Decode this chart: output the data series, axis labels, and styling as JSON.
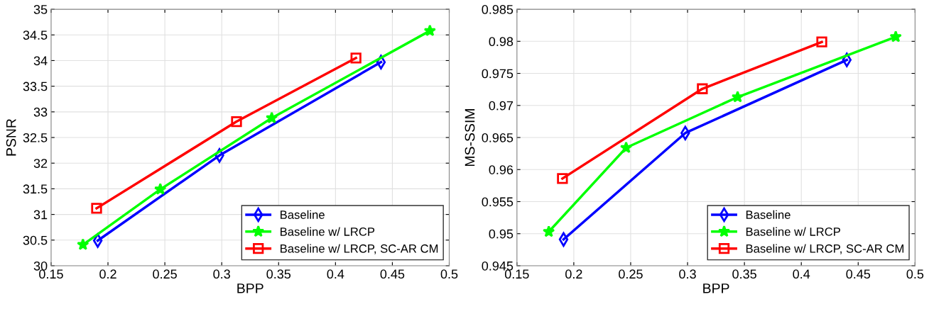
{
  "chart_data": [
    {
      "type": "line",
      "xlabel": "BPP",
      "ylabel": "PSNR",
      "xlim": [
        0.15,
        0.5
      ],
      "xticks": [
        0.15,
        0.2,
        0.25,
        0.3,
        0.35,
        0.4,
        0.45,
        0.5
      ],
      "ylim": [
        30,
        35
      ],
      "yticks": [
        30,
        30.5,
        31,
        31.5,
        32,
        32.5,
        33,
        33.5,
        34,
        34.5,
        35
      ],
      "grid": true,
      "legend": "bottom right",
      "series": [
        {
          "name": "Baseline",
          "color": "#0000ff",
          "marker": "diamond",
          "x": [
            0.191,
            0.298,
            0.44
          ],
          "values": [
            30.49,
            32.15,
            33.97
          ]
        },
        {
          "name": "Baseline w/ LRCP",
          "color": "#00ff00",
          "marker": "star",
          "x": [
            0.178,
            0.246,
            0.344,
            0.483
          ],
          "values": [
            30.41,
            31.49,
            32.88,
            34.58
          ]
        },
        {
          "name": "Baseline w/ LRCP, SC-AR CM",
          "color": "#ff0000",
          "marker": "square",
          "x": [
            0.19,
            0.313,
            0.418
          ],
          "values": [
            31.12,
            32.81,
            34.05
          ]
        }
      ]
    },
    {
      "type": "line",
      "xlabel": "BPP",
      "ylabel": "MS-SSIM",
      "xlim": [
        0.15,
        0.5
      ],
      "xticks": [
        0.15,
        0.2,
        0.25,
        0.3,
        0.35,
        0.4,
        0.45,
        0.5
      ],
      "ylim": [
        0.945,
        0.985
      ],
      "yticks": [
        0.945,
        0.95,
        0.955,
        0.96,
        0.965,
        0.97,
        0.975,
        0.98,
        0.985
      ],
      "grid": true,
      "legend": "bottom right",
      "series": [
        {
          "name": "Baseline",
          "color": "#0000ff",
          "marker": "diamond",
          "x": [
            0.191,
            0.298,
            0.44
          ],
          "values": [
            0.9491,
            0.9657,
            0.9771
          ]
        },
        {
          "name": "Baseline w/ LRCP",
          "color": "#00ff00",
          "marker": "star",
          "x": [
            0.178,
            0.246,
            0.344,
            0.483
          ],
          "values": [
            0.9503,
            0.9634,
            0.9713,
            0.9807
          ]
        },
        {
          "name": "Baseline w/ LRCP, SC-AR CM",
          "color": "#ff0000",
          "marker": "square",
          "x": [
            0.19,
            0.313,
            0.418
          ],
          "values": [
            0.9586,
            0.9726,
            0.9799
          ]
        }
      ]
    }
  ]
}
